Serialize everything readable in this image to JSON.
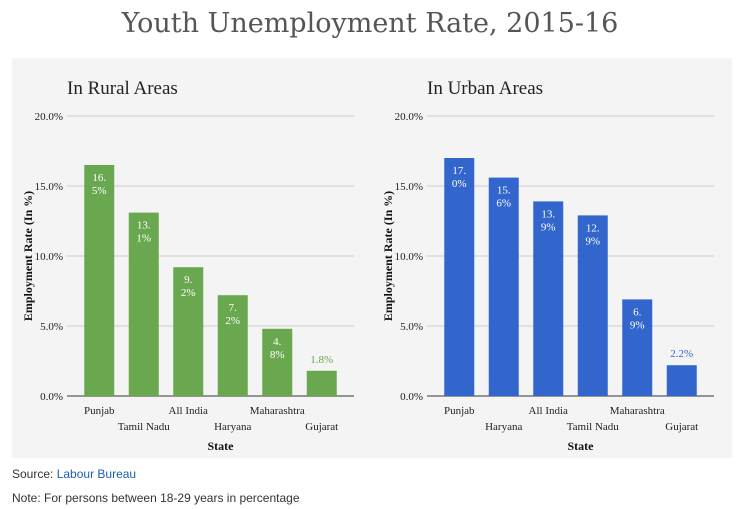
{
  "title": "Youth Unemployment Rate, 2015-16",
  "source": {
    "label": "Source: ",
    "link_text": "Labour Bureau"
  },
  "note": "Note: For persons between 18-29 years in percentage",
  "chart_data": [
    {
      "type": "bar",
      "title": "In Rural Areas",
      "xlabel": "State",
      "ylabel": "Employment Rate (In %)",
      "ylim": [
        0,
        20
      ],
      "yticks": [
        "0.0%",
        "5.0%",
        "10.0%",
        "15.0%",
        "20.0%"
      ],
      "color": "#6aa84f",
      "categories": [
        "Punjab",
        "Tamil Nadu",
        "All India",
        "Haryana",
        "Maharashtra",
        "Gujarat"
      ],
      "values": [
        16.5,
        13.1,
        9.2,
        7.2,
        4.8,
        1.8
      ],
      "data_labels": [
        [
          "16.",
          "5%"
        ],
        [
          "13.",
          "1%"
        ],
        [
          "9.",
          "2%"
        ],
        [
          "7.",
          "2%"
        ],
        [
          "4.",
          "8%"
        ],
        [
          "1.8%"
        ]
      ],
      "grid": true
    },
    {
      "type": "bar",
      "title": "In Urban Areas",
      "xlabel": "State",
      "ylabel": "Employment Rate (In %)",
      "ylim": [
        0,
        20
      ],
      "yticks": [
        "0.0%",
        "5.0%",
        "10.0%",
        "15.0%",
        "20.0%"
      ],
      "color": "#3366cc",
      "categories": [
        "Punjab",
        "Haryana",
        "All India",
        "Tamil Nadu",
        "Maharashtra",
        "Gujarat"
      ],
      "values": [
        17.0,
        15.6,
        13.9,
        12.9,
        6.9,
        2.2
      ],
      "data_labels": [
        [
          "17.",
          "0%"
        ],
        [
          "15.",
          "6%"
        ],
        [
          "13.",
          "9%"
        ],
        [
          "12.",
          "9%"
        ],
        [
          "6.",
          "9%"
        ],
        [
          "2.2%"
        ]
      ],
      "grid": true
    }
  ]
}
